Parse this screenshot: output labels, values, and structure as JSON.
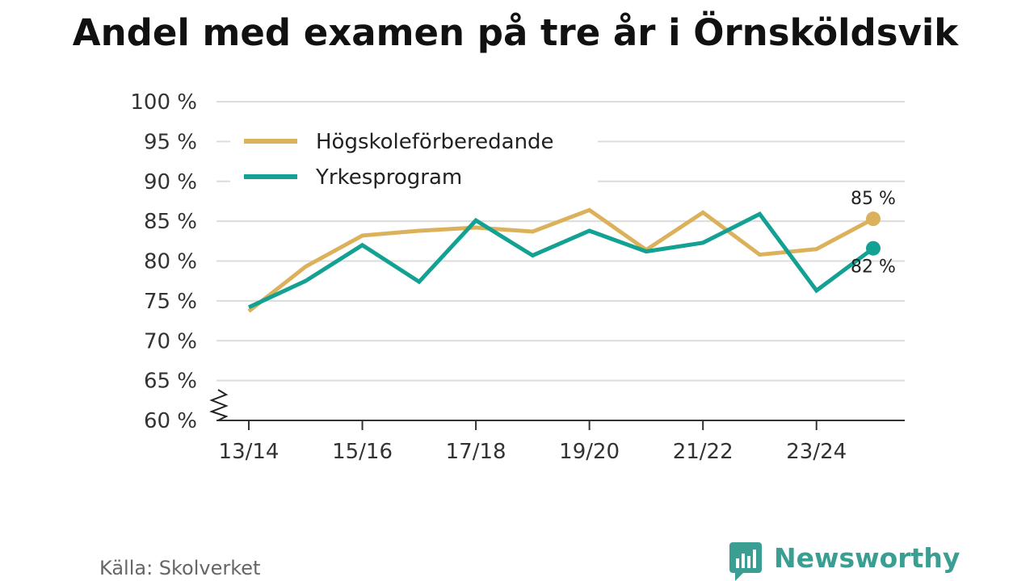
{
  "chart_data": {
    "type": "line",
    "title": "Andel med examen på tre år i Örnsköldsvik",
    "xlabel": "",
    "ylabel": "",
    "ylim": [
      60,
      100
    ],
    "yticks": [
      60,
      65,
      70,
      75,
      80,
      85,
      90,
      95,
      100
    ],
    "ytick_suffix": " %",
    "x": [
      "13/14",
      "14/15",
      "15/16",
      "16/17",
      "17/18",
      "18/19",
      "19/20",
      "20/21",
      "21/22",
      "22/23",
      "23/24",
      "24/25"
    ],
    "xtick_labels": [
      "13/14",
      "15/16",
      "17/18",
      "19/20",
      "21/22",
      "23/24"
    ],
    "legend_position": "top-left",
    "grid": true,
    "axis_break": true,
    "series": [
      {
        "name": "Högskoleförberedande",
        "color": "#dcb15c",
        "values": [
          73.7,
          79.3,
          83.2,
          83.8,
          84.2,
          83.7,
          86.4,
          81.4,
          86.1,
          80.8,
          81.5,
          85.3
        ],
        "end_label": "85 %"
      },
      {
        "name": "Yrkesprogram",
        "color": "#12a192",
        "values": [
          74.2,
          77.5,
          82.0,
          77.4,
          85.1,
          80.7,
          83.8,
          81.2,
          82.3,
          85.9,
          76.3,
          81.6
        ],
        "end_label": "82 %"
      }
    ]
  },
  "footer": {
    "source": "Källa: Skolverket",
    "brand": "Newsworthy"
  }
}
